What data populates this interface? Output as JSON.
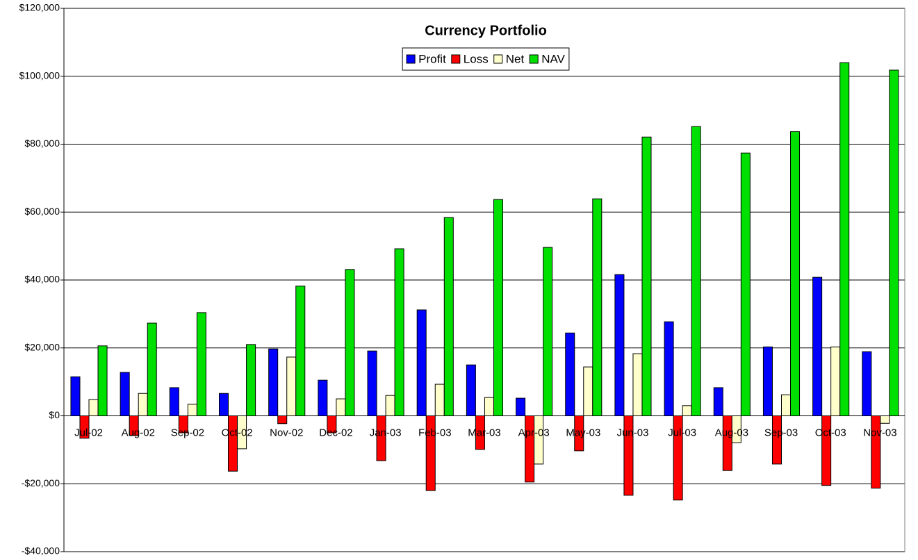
{
  "chart_data": {
    "type": "bar",
    "title": "Currency Portfolio",
    "categories": [
      "Jul-02",
      "Aug-02",
      "Sep-02",
      "Oct-02",
      "Nov-02",
      "Dec-02",
      "Jan-03",
      "Feb-03",
      "Mar-03",
      "Apr-03",
      "May-03",
      "Jun-03",
      "Jul-03",
      "Aug-03",
      "Sep-03",
      "Oct-03",
      "Nov-03"
    ],
    "series": [
      {
        "name": "Profit",
        "color": "#0000ff",
        "values": [
          11500,
          12800,
          8300,
          6600,
          19700,
          10500,
          19100,
          31200,
          15000,
          5200,
          24400,
          41600,
          27700,
          8300,
          20300,
          40800,
          18900
        ]
      },
      {
        "name": "Loss",
        "color": "#ff0000",
        "values": [
          -6600,
          -5800,
          -5000,
          -16300,
          -2300,
          -5000,
          -13200,
          -22000,
          -9900,
          -19500,
          -10300,
          -23400,
          -24800,
          -16100,
          -14200,
          -20500,
          -21300
        ]
      },
      {
        "name": "Net",
        "color": "#ffffcc",
        "values": [
          4800,
          6600,
          3400,
          -9700,
          17300,
          5000,
          6000,
          9300,
          5400,
          -14200,
          14400,
          18300,
          3000,
          -7900,
          6200,
          20300,
          -2200
        ]
      },
      {
        "name": "NAV",
        "color": "#00e000",
        "values": [
          20600,
          27300,
          30400,
          21000,
          38200,
          43100,
          49200,
          58400,
          63700,
          49600,
          63900,
          82100,
          85200,
          77400,
          83700,
          104000,
          101800
        ]
      }
    ],
    "ylim": [
      -40000,
      120000
    ],
    "yticks": [
      {
        "value": -40000,
        "label": "-$40,000"
      },
      {
        "value": -20000,
        "label": "-$20,000"
      },
      {
        "value": 0,
        "label": "$0"
      },
      {
        "value": 20000,
        "label": "$20,000"
      },
      {
        "value": 40000,
        "label": "$40,000"
      },
      {
        "value": 60000,
        "label": "$60,000"
      },
      {
        "value": 80000,
        "label": "$80,000"
      },
      {
        "value": 100000,
        "label": "$100,000"
      },
      {
        "value": 120000,
        "label": "$120,000"
      }
    ],
    "grid": true,
    "legend": "top"
  }
}
